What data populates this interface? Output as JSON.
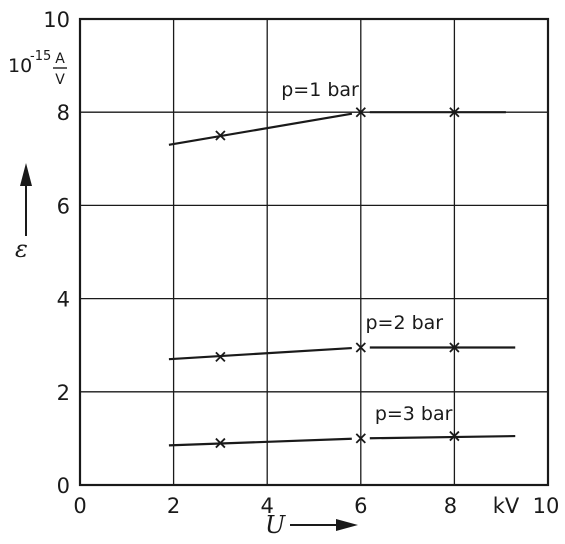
{
  "chart_data": {
    "type": "line",
    "xlabel": "U",
    "ylabel": "ε",
    "x_unit": "kV",
    "y_unit": {
      "exponent_base": "10",
      "exponent": "-15",
      "numerator": "A",
      "denominator": "V"
    },
    "xlim": [
      0,
      10
    ],
    "ylim": [
      0,
      10
    ],
    "x_ticks": [
      "0",
      "2",
      "4",
      "6",
      "8",
      "10"
    ],
    "y_ticks": [
      "0",
      "2",
      "4",
      "6",
      "8",
      "10"
    ],
    "grid": true,
    "series": [
      {
        "name": "p=1 bar",
        "points": [
          [
            3,
            7.5
          ],
          [
            6,
            8.0
          ],
          [
            8,
            8.0
          ]
        ],
        "line": [
          [
            1.9,
            7.3
          ],
          [
            6,
            8.0
          ],
          [
            9.1,
            8.0
          ]
        ],
        "label_at": [
          4.3,
          8.35
        ]
      },
      {
        "name": "p=2 bar",
        "points": [
          [
            3,
            2.75
          ],
          [
            6,
            2.95
          ],
          [
            8,
            2.95
          ]
        ],
        "line": [
          [
            1.9,
            2.7
          ],
          [
            6,
            2.95
          ],
          [
            9.3,
            2.95
          ]
        ],
        "label_at": [
          6.1,
          3.35
        ]
      },
      {
        "name": "p=3 bar",
        "points": [
          [
            3,
            0.9
          ],
          [
            6,
            1.0
          ],
          [
            8,
            1.05
          ]
        ],
        "line": [
          [
            1.9,
            0.85
          ],
          [
            6,
            1.0
          ],
          [
            9.3,
            1.05
          ]
        ],
        "label_at": [
          6.3,
          1.4
        ]
      }
    ]
  }
}
